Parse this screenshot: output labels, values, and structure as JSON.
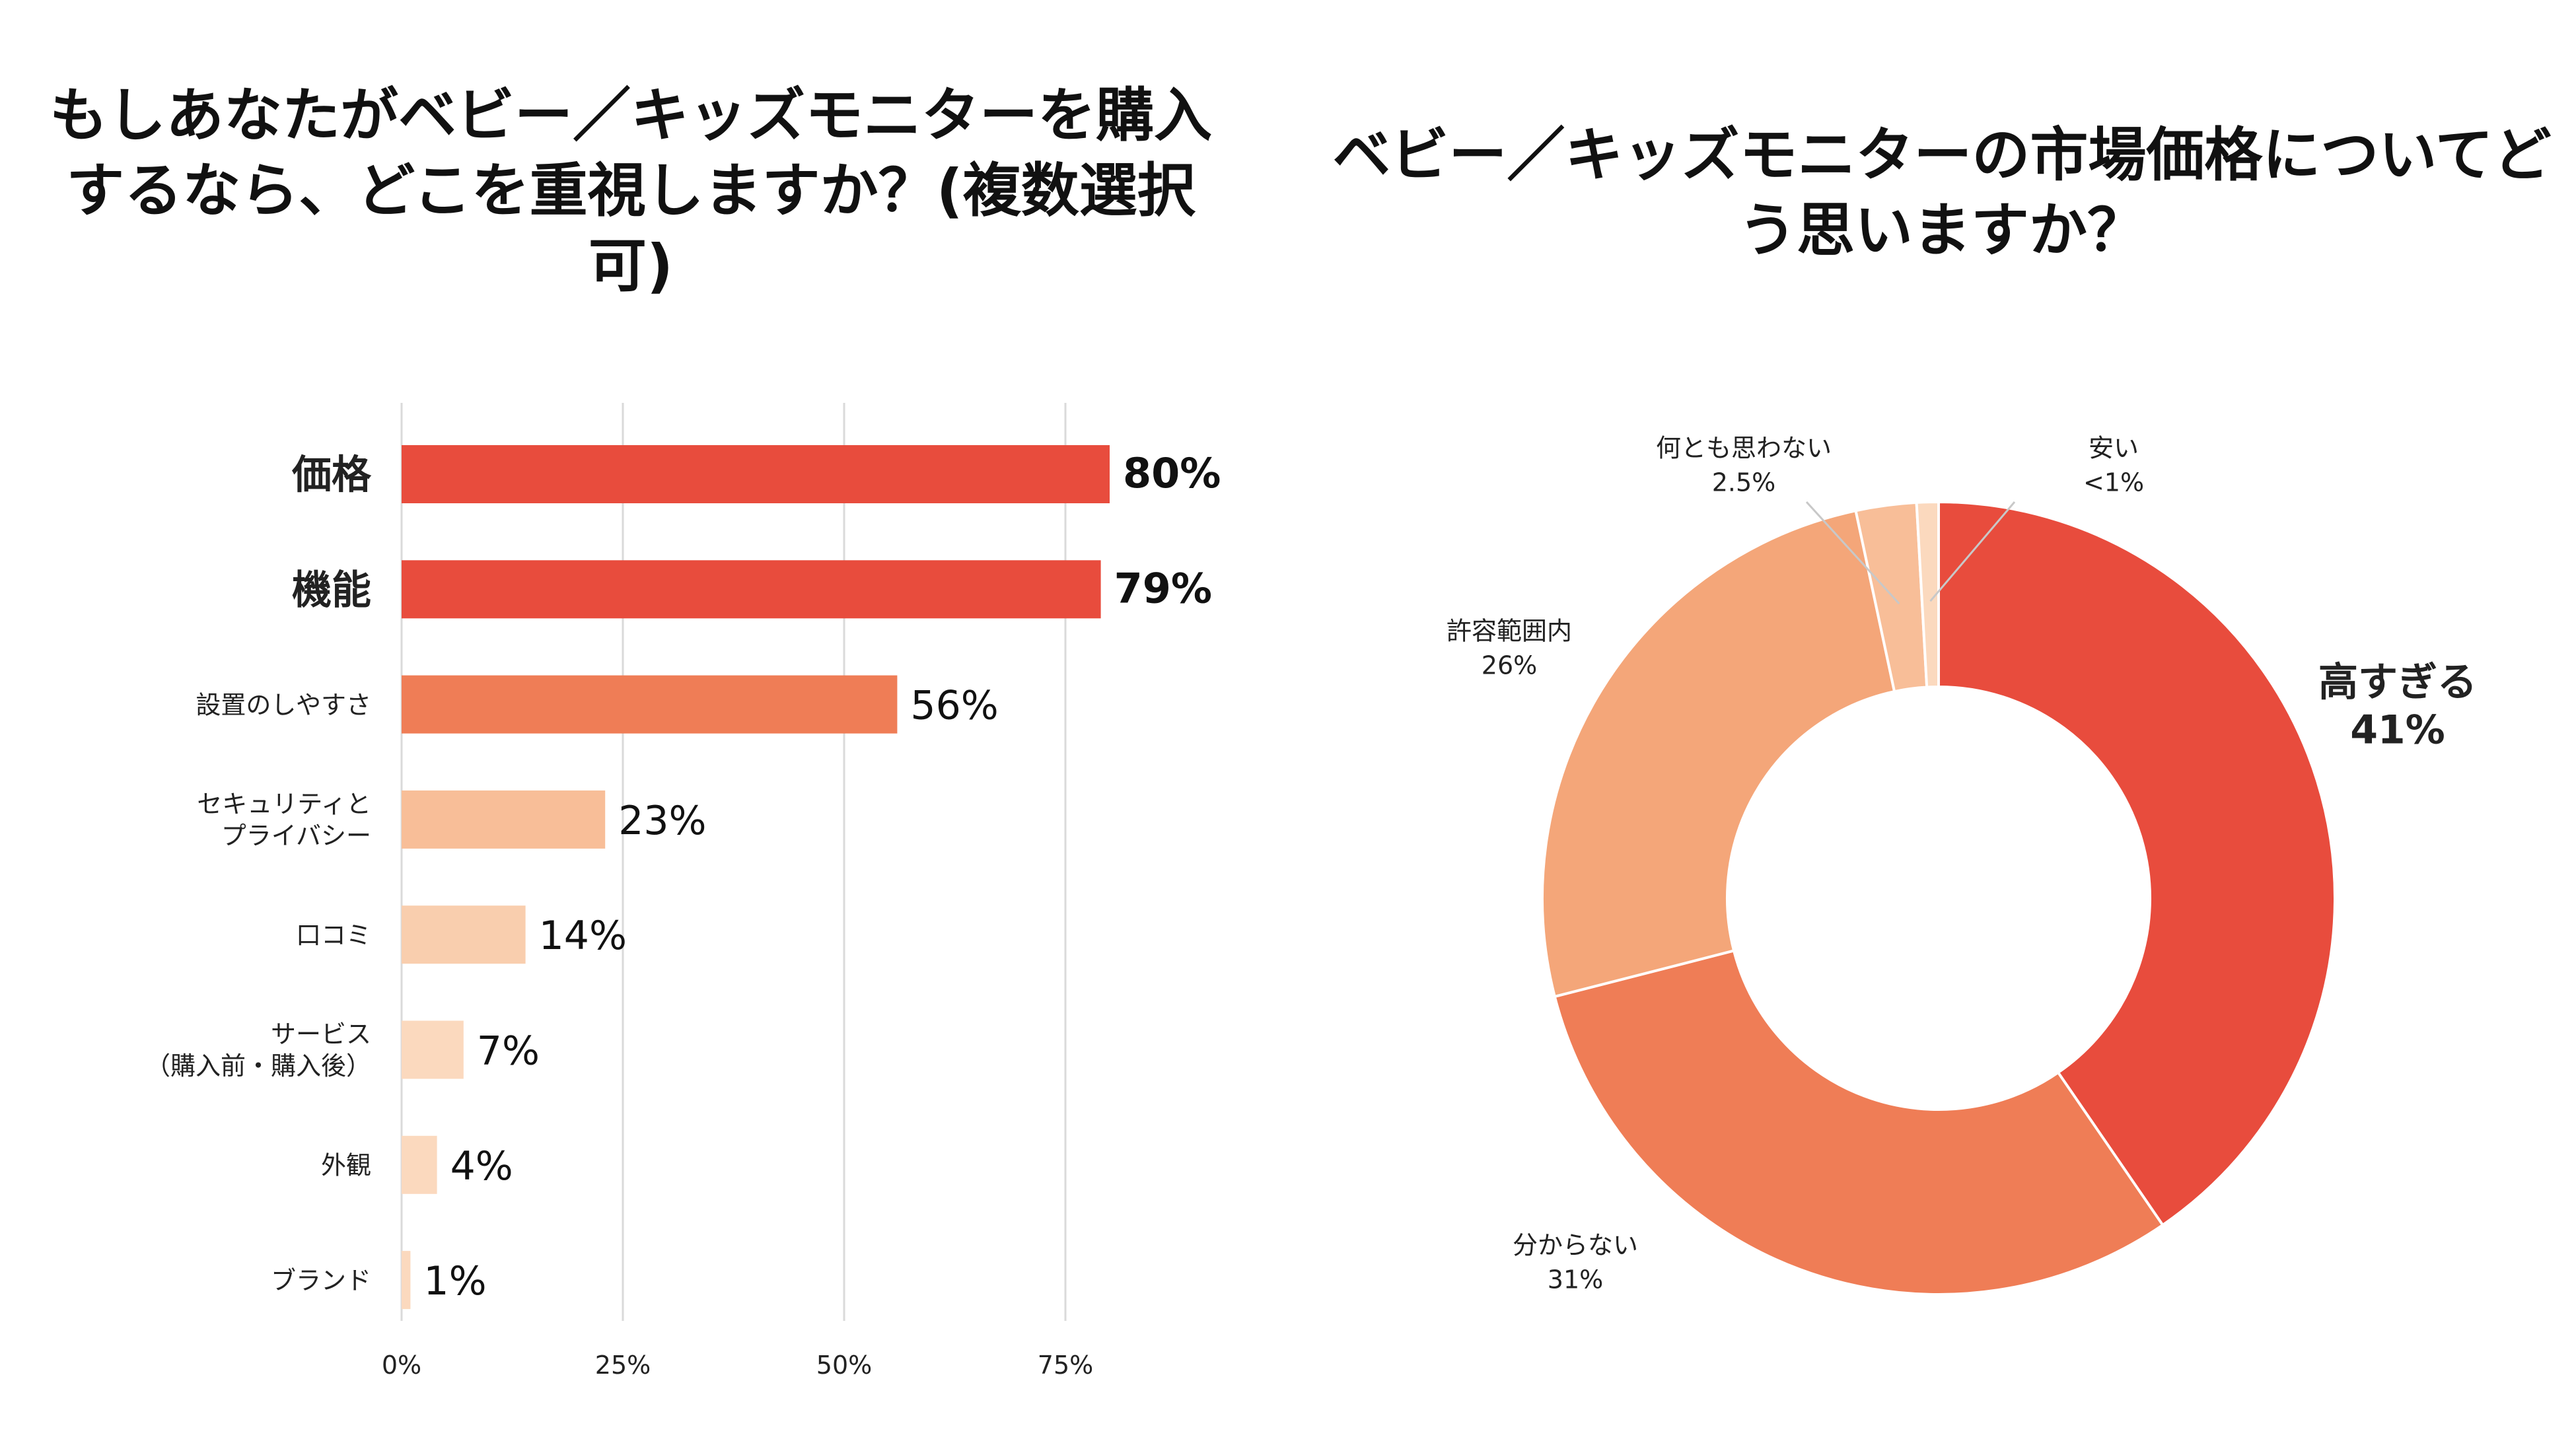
{
  "bar_chart_title": "もしあなたがベビー／キッズモニターを購入するなら、どこを重視しますか？(複数選択可)",
  "pie_chart_title": "ベビー／キッズモニターの市場価格についてどう思いますか？",
  "colors": {
    "red": "#E84C3D",
    "orange": "#EF7D56",
    "peach": "#F4A679",
    "lightPeach": "#F8BE98",
    "pale": "#F9CEAE",
    "palest": "#FBD9BE",
    "grid": "#DADADA"
  },
  "chart_data": [
    {
      "type": "bar",
      "orientation": "horizontal",
      "title": "もしあなたがベビー／キッズモニターを購入するなら、どこを重視しますか？(複数選択可)",
      "categories": [
        [
          "価格"
        ],
        [
          "機能"
        ],
        [
          "設置のしやすさ"
        ],
        [
          "セキュリティと",
          "プライバシー"
        ],
        [
          "口コミ"
        ],
        [
          "サービス",
          "（購入前・購入後）"
        ],
        [
          "外観"
        ],
        [
          "ブランド"
        ]
      ],
      "values": [
        80,
        79,
        56,
        23,
        14,
        7,
        4,
        1
      ],
      "value_labels": [
        "80%",
        "79%",
        "56%",
        "23%",
        "14%",
        "7%",
        "4%",
        "1%"
      ],
      "bold": [
        true,
        true,
        false,
        false,
        false,
        false,
        false,
        false
      ],
      "bar_colors": [
        "#E84C3D",
        "#E84C3D",
        "#EF7D56",
        "#F8BE98",
        "#F9CEAE",
        "#FBD9BE",
        "#FBD9BE",
        "#FBD9BE"
      ],
      "xticks": [
        0,
        25,
        50,
        75
      ],
      "xtick_labels": [
        "0%",
        "25%",
        "50%",
        "75%"
      ],
      "xlim": [
        0,
        100
      ]
    },
    {
      "type": "pie",
      "style": "donut",
      "title": "ベビー／キッズモニターの市場価格についてどう思いますか？",
      "slices": [
        {
          "label": "高すぎる",
          "value_label": "41%",
          "value": 41,
          "color": "#E84C3D",
          "bold": true
        },
        {
          "label": "分からない",
          "value_label": "31%",
          "value": 31,
          "color": "#EF7D56",
          "bold": false
        },
        {
          "label": "許容範囲内",
          "value_label": "26%",
          "value": 26,
          "color": "#F4A679",
          "bold": false
        },
        {
          "label": "何とも思わない",
          "value_label": "2.5%",
          "value": 2.5,
          "color": "#F8BE98",
          "bold": false
        },
        {
          "label": "安い",
          "value_label": "<1%",
          "value": 0.9,
          "color": "#FBD9BE",
          "bold": false
        }
      ]
    }
  ]
}
